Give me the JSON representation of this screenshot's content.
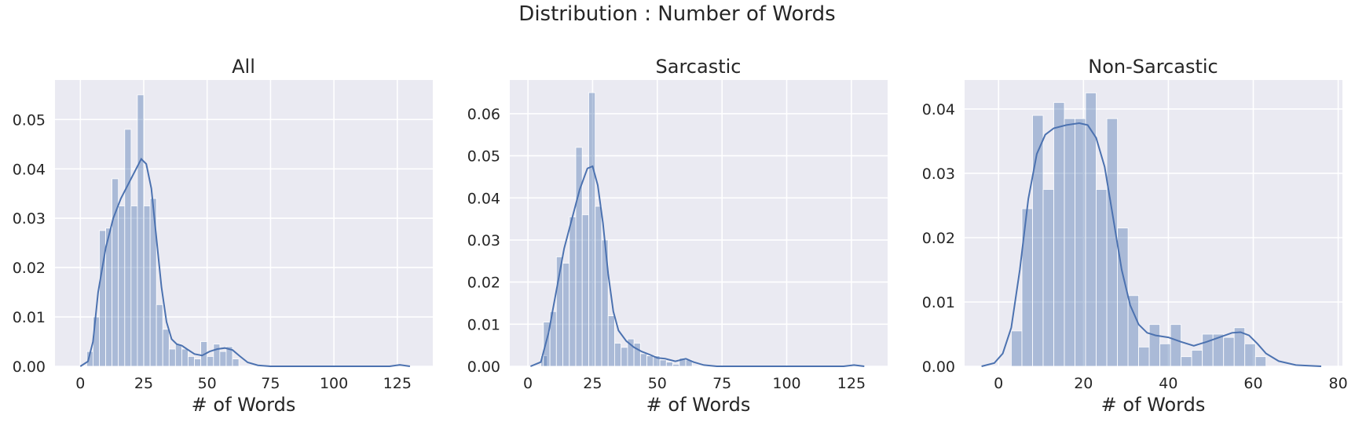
{
  "figure": {
    "suptitle": "Distribution : Number of Words"
  },
  "colors": {
    "axes_bg": "#eaeaf2",
    "grid": "#ffffff",
    "bar": "#4c72b0",
    "kde": "#4c72b0"
  },
  "chart_data": [
    {
      "type": "bar",
      "title": "All",
      "xlabel": "# of Words",
      "ylabel": "",
      "xlim": [
        -10,
        139
      ],
      "ylim": [
        0,
        0.058
      ],
      "xticks": [
        0,
        25,
        50,
        75,
        100,
        125
      ],
      "yticks": [
        0.0,
        0.01,
        0.02,
        0.03,
        0.04,
        0.05
      ],
      "ytick_labels": [
        "0.00",
        "0.01",
        "0.02",
        "0.03",
        "0.04",
        "0.05"
      ],
      "bin_width": 2.5,
      "bins": [
        {
          "x0": 2.5,
          "value": 0.003
        },
        {
          "x0": 5.0,
          "value": 0.01
        },
        {
          "x0": 7.5,
          "value": 0.0275
        },
        {
          "x0": 10.0,
          "value": 0.028
        },
        {
          "x0": 12.5,
          "value": 0.038
        },
        {
          "x0": 15.0,
          "value": 0.0325
        },
        {
          "x0": 17.5,
          "value": 0.048
        },
        {
          "x0": 20.0,
          "value": 0.0325
        },
        {
          "x0": 22.5,
          "value": 0.055
        },
        {
          "x0": 25.0,
          "value": 0.0325
        },
        {
          "x0": 27.5,
          "value": 0.034
        },
        {
          "x0": 30.0,
          "value": 0.0125
        },
        {
          "x0": 32.5,
          "value": 0.0075
        },
        {
          "x0": 35.0,
          "value": 0.0035
        },
        {
          "x0": 37.5,
          "value": 0.0045
        },
        {
          "x0": 40.0,
          "value": 0.0035
        },
        {
          "x0": 42.5,
          "value": 0.002
        },
        {
          "x0": 45.0,
          "value": 0.0015
        },
        {
          "x0": 47.5,
          "value": 0.005
        },
        {
          "x0": 50.0,
          "value": 0.002
        },
        {
          "x0": 52.5,
          "value": 0.0045
        },
        {
          "x0": 55.0,
          "value": 0.003
        },
        {
          "x0": 57.5,
          "value": 0.004
        },
        {
          "x0": 60.0,
          "value": 0.0015
        },
        {
          "x0": 125.0,
          "value": 0.0002
        }
      ],
      "kde": [
        [
          0,
          0
        ],
        [
          3,
          0.001
        ],
        [
          5,
          0.005
        ],
        [
          7,
          0.015
        ],
        [
          10,
          0.024
        ],
        [
          13,
          0.03
        ],
        [
          16,
          0.034
        ],
        [
          19,
          0.037
        ],
        [
          22,
          0.04
        ],
        [
          24,
          0.042
        ],
        [
          26,
          0.041
        ],
        [
          28,
          0.036
        ],
        [
          30,
          0.026
        ],
        [
          32,
          0.016
        ],
        [
          34,
          0.009
        ],
        [
          36,
          0.0055
        ],
        [
          38,
          0.0045
        ],
        [
          40,
          0.0042
        ],
        [
          42,
          0.0035
        ],
        [
          45,
          0.0025
        ],
        [
          48,
          0.0022
        ],
        [
          51,
          0.003
        ],
        [
          54,
          0.0035
        ],
        [
          57,
          0.0037
        ],
        [
          60,
          0.0033
        ],
        [
          63,
          0.002
        ],
        [
          66,
          0.0008
        ],
        [
          70,
          0.0002
        ],
        [
          75,
          0
        ],
        [
          122,
          0
        ],
        [
          126,
          0.0003
        ],
        [
          130,
          0
        ]
      ]
    },
    {
      "type": "bar",
      "title": "Sarcastic",
      "xlabel": "# of Words",
      "ylabel": "",
      "xlim": [
        -7,
        139
      ],
      "ylim": [
        0,
        0.068
      ],
      "xticks": [
        0,
        25,
        50,
        75,
        100,
        125
      ],
      "yticks": [
        0.0,
        0.01,
        0.02,
        0.03,
        0.04,
        0.05,
        0.06
      ],
      "ytick_labels": [
        "0.00",
        "0.01",
        "0.02",
        "0.03",
        "0.04",
        "0.05",
        "0.06"
      ],
      "bin_width": 2.5,
      "bins": [
        {
          "x0": 5.0,
          "value": 0.0025
        },
        {
          "x0": 6.0,
          "value": 0.0105
        },
        {
          "x0": 8.5,
          "value": 0.013
        },
        {
          "x0": 11.0,
          "value": 0.026
        },
        {
          "x0": 13.5,
          "value": 0.0245
        },
        {
          "x0": 16.0,
          "value": 0.0355
        },
        {
          "x0": 18.5,
          "value": 0.052
        },
        {
          "x0": 21.0,
          "value": 0.036
        },
        {
          "x0": 23.5,
          "value": 0.065
        },
        {
          "x0": 26.0,
          "value": 0.038
        },
        {
          "x0": 28.5,
          "value": 0.03
        },
        {
          "x0": 31.0,
          "value": 0.012
        },
        {
          "x0": 33.5,
          "value": 0.0055
        },
        {
          "x0": 36.0,
          "value": 0.0045
        },
        {
          "x0": 38.5,
          "value": 0.0065
        },
        {
          "x0": 41.0,
          "value": 0.0055
        },
        {
          "x0": 43.5,
          "value": 0.003
        },
        {
          "x0": 46.0,
          "value": 0.0025
        },
        {
          "x0": 48.5,
          "value": 0.0025
        },
        {
          "x0": 51.0,
          "value": 0.0015
        },
        {
          "x0": 53.5,
          "value": 0.001
        },
        {
          "x0": 56.0,
          "value": 0.0005
        },
        {
          "x0": 58.5,
          "value": 0.002
        },
        {
          "x0": 61.0,
          "value": 0.0015
        },
        {
          "x0": 125.0,
          "value": 0.0002
        }
      ],
      "kde": [
        [
          1,
          0
        ],
        [
          5,
          0.001
        ],
        [
          8,
          0.008
        ],
        [
          11,
          0.018
        ],
        [
          14,
          0.028
        ],
        [
          17,
          0.035
        ],
        [
          20,
          0.042
        ],
        [
          23,
          0.047
        ],
        [
          25,
          0.0475
        ],
        [
          27,
          0.043
        ],
        [
          29,
          0.034
        ],
        [
          31,
          0.022
        ],
        [
          33,
          0.013
        ],
        [
          35,
          0.0085
        ],
        [
          38,
          0.006
        ],
        [
          41,
          0.0045
        ],
        [
          44,
          0.0035
        ],
        [
          47,
          0.0028
        ],
        [
          50,
          0.002
        ],
        [
          53,
          0.0018
        ],
        [
          57,
          0.0012
        ],
        [
          61,
          0.0018
        ],
        [
          64,
          0.001
        ],
        [
          68,
          0.0003
        ],
        [
          73,
          0
        ],
        [
          122,
          0
        ],
        [
          126,
          0.0003
        ],
        [
          130,
          0
        ]
      ]
    },
    {
      "type": "bar",
      "title": "Non-Sarcastic",
      "xlabel": "# of Words",
      "ylabel": "",
      "xlim": [
        -8,
        81
      ],
      "ylim": [
        0,
        0.0445
      ],
      "xticks": [
        0,
        20,
        40,
        60,
        80
      ],
      "yticks": [
        0.0,
        0.01,
        0.02,
        0.03,
        0.04
      ],
      "ytick_labels": [
        "0.00",
        "0.01",
        "0.02",
        "0.03",
        "0.04"
      ],
      "bin_width": 2.5,
      "bins": [
        {
          "x0": 3.0,
          "value": 0.0055
        },
        {
          "x0": 5.5,
          "value": 0.0245
        },
        {
          "x0": 8.0,
          "value": 0.039
        },
        {
          "x0": 10.5,
          "value": 0.0275
        },
        {
          "x0": 13.0,
          "value": 0.041
        },
        {
          "x0": 15.5,
          "value": 0.0385
        },
        {
          "x0": 18.0,
          "value": 0.0385
        },
        {
          "x0": 20.5,
          "value": 0.0425
        },
        {
          "x0": 23.0,
          "value": 0.0275
        },
        {
          "x0": 25.5,
          "value": 0.0385
        },
        {
          "x0": 28.0,
          "value": 0.0215
        },
        {
          "x0": 30.5,
          "value": 0.011
        },
        {
          "x0": 33.0,
          "value": 0.003
        },
        {
          "x0": 35.5,
          "value": 0.0065
        },
        {
          "x0": 38.0,
          "value": 0.0035
        },
        {
          "x0": 40.5,
          "value": 0.0065
        },
        {
          "x0": 43.0,
          "value": 0.0015
        },
        {
          "x0": 45.5,
          "value": 0.0025
        },
        {
          "x0": 48.0,
          "value": 0.005
        },
        {
          "x0": 50.5,
          "value": 0.005
        },
        {
          "x0": 53.0,
          "value": 0.0045
        },
        {
          "x0": 55.5,
          "value": 0.006
        },
        {
          "x0": 58.0,
          "value": 0.0035
        },
        {
          "x0": 60.5,
          "value": 0.0015
        }
      ],
      "kde": [
        [
          -4,
          0
        ],
        [
          -1,
          0.0005
        ],
        [
          1,
          0.002
        ],
        [
          3,
          0.006
        ],
        [
          5,
          0.015
        ],
        [
          7,
          0.026
        ],
        [
          9,
          0.033
        ],
        [
          11,
          0.036
        ],
        [
          13,
          0.037
        ],
        [
          16,
          0.0375
        ],
        [
          19,
          0.0378
        ],
        [
          21,
          0.0375
        ],
        [
          23,
          0.0355
        ],
        [
          25,
          0.031
        ],
        [
          27,
          0.023
        ],
        [
          29,
          0.015
        ],
        [
          31,
          0.0095
        ],
        [
          33,
          0.0065
        ],
        [
          35,
          0.0052
        ],
        [
          37,
          0.0048
        ],
        [
          40,
          0.0045
        ],
        [
          43,
          0.0038
        ],
        [
          46,
          0.0032
        ],
        [
          49,
          0.0038
        ],
        [
          52,
          0.0045
        ],
        [
          55,
          0.0052
        ],
        [
          57,
          0.0053
        ],
        [
          59,
          0.0048
        ],
        [
          61,
          0.0035
        ],
        [
          63,
          0.002
        ],
        [
          66,
          0.0008
        ],
        [
          70,
          0.0002
        ],
        [
          76,
          0
        ]
      ]
    }
  ]
}
